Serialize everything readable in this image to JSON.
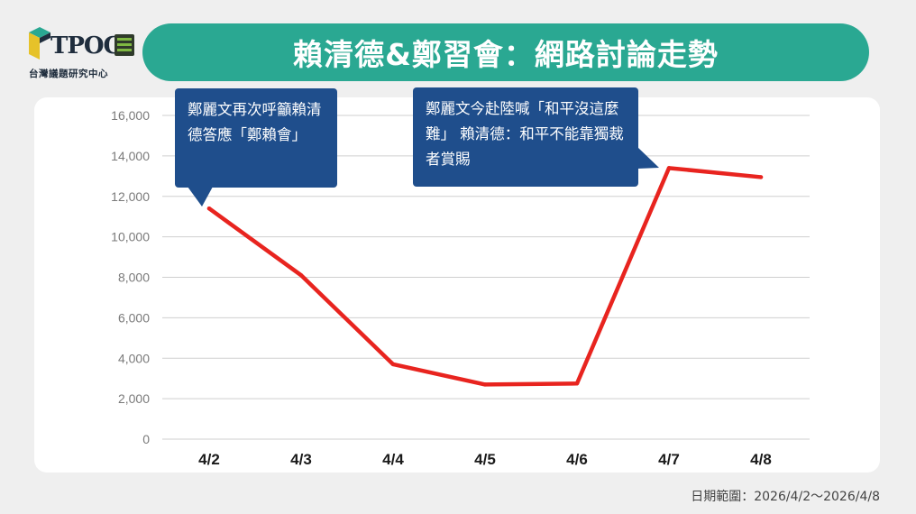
{
  "logo": {
    "word": "TPOC",
    "subtitle": "台灣議題研究中心"
  },
  "title": "賴清德&鄭習會：網路討論走勢",
  "footer": {
    "date_range": "日期範圍：2026/4/2～2026/4/8"
  },
  "annotations": [
    {
      "text": "鄭麗文再次呼籲賴清德答應「鄭賴會」",
      "x": "4/2"
    },
    {
      "text": "鄭麗文今赴陸喊「和平沒這麼難」 賴清德：和平不能靠獨裁者賞賜",
      "x": "4/7"
    }
  ],
  "chart_data": {
    "type": "line",
    "categories": [
      "4/2",
      "4/3",
      "4/4",
      "4/5",
      "4/6",
      "4/7",
      "4/8"
    ],
    "series": [
      {
        "values": [
          11400,
          8100,
          3700,
          2700,
          2750,
          13400,
          12950
        ],
        "color": "#e8241f"
      }
    ],
    "ylim": [
      0,
      16000
    ],
    "yticks": [
      0,
      2000,
      4000,
      6000,
      8000,
      10000,
      12000,
      14000,
      16000
    ],
    "ytick_labels": [
      "0",
      "2,000",
      "4,000",
      "6,000",
      "8,000",
      "10,000",
      "12,000",
      "14,000",
      "16,000"
    ],
    "grid": true,
    "colors": {
      "grid": "#cfcfcf",
      "axis_text": "#7a7a7a",
      "category_text": "#1a1a1a"
    }
  },
  "colors": {
    "banner": "#2aa892",
    "callout": "#1f4e8c",
    "background": "#efefef",
    "panel": "#ffffff"
  }
}
